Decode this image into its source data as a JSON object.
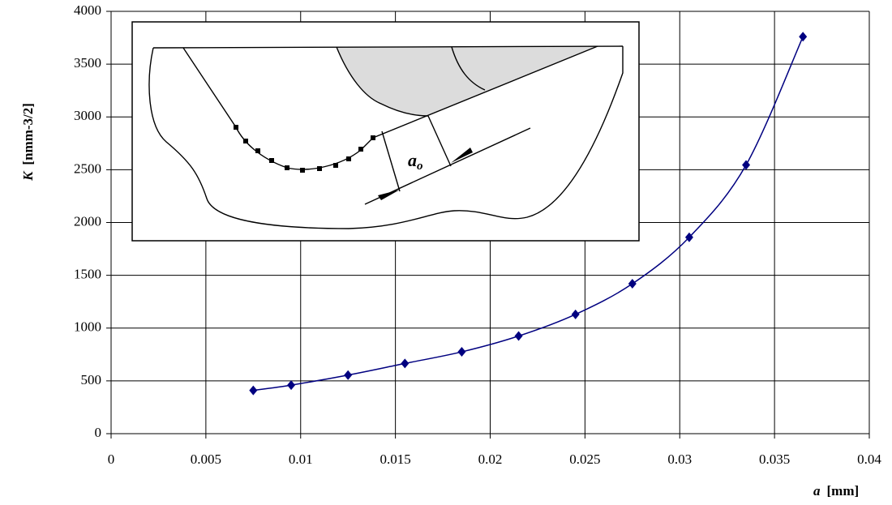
{
  "chart_data": {
    "type": "scatter",
    "x_label": {
      "symbol": "a",
      "unit": "[mm]"
    },
    "y_label": {
      "symbol": "K",
      "unit": "[nmm-3/2]"
    },
    "inset_label": {
      "symbol": "a",
      "subscript": "o"
    },
    "series": [
      {
        "color": "#000080",
        "x": [
          0.0075,
          0.0095,
          0.0125,
          0.0155,
          0.0185,
          0.0215,
          0.0245,
          0.0275,
          0.0305,
          0.0335,
          0.0365
        ],
        "values": [
          410,
          460,
          555,
          665,
          775,
          925,
          1130,
          1420,
          1860,
          2545,
          3760
        ]
      }
    ],
    "xlim": [
      0,
      0.04
    ],
    "xticks": [
      0,
      0.005,
      0.01,
      0.015,
      0.02,
      0.025,
      0.03,
      0.035,
      0.04
    ],
    "ylim": [
      0,
      4000
    ],
    "yticks": [
      0,
      500,
      1000,
      1500,
      2000,
      2500,
      3000,
      3500,
      4000
    ],
    "grid": true,
    "smooth": true
  }
}
